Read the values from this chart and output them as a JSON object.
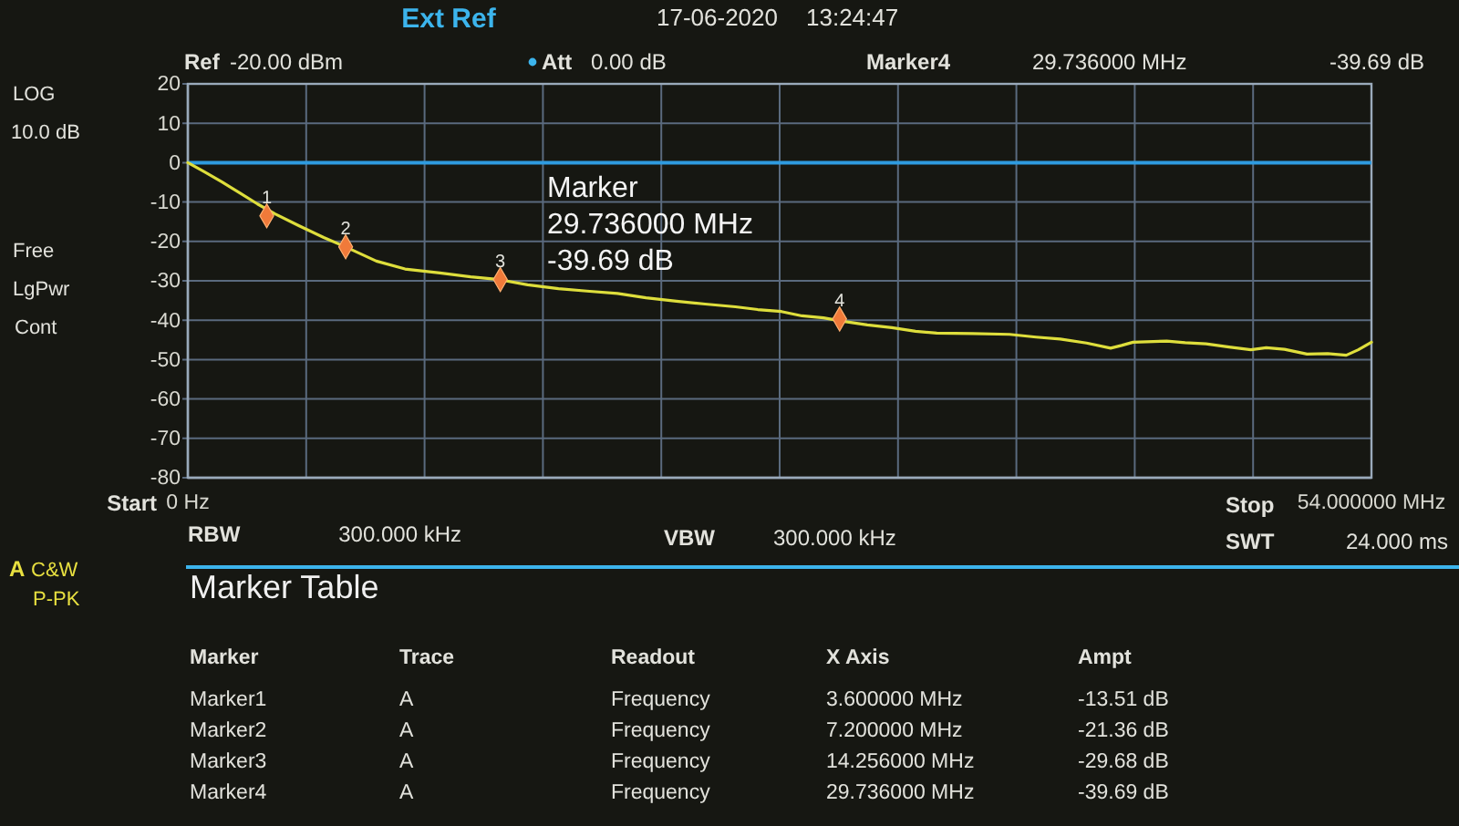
{
  "chart_data": {
    "type": "line",
    "series": [
      {
        "color": "#dede3c",
        "x": [
          0,
          0.75,
          1.56,
          2.37,
          3.18,
          3.98,
          5.06,
          6.2,
          7.2,
          8.6,
          9.91,
          11.5,
          12.9,
          14.21,
          15.5,
          16.91,
          18.2,
          19.6,
          20.9,
          22.29,
          23.6,
          24.98,
          26.0,
          27.08,
          28.02,
          29.0,
          29.82,
          31.0,
          32.12,
          33.2,
          34.17,
          35.8,
          37.49,
          38.7,
          39.8,
          41.0,
          42.1,
          42.6,
          43.12,
          44.66,
          45.5,
          46.45,
          47.5,
          48.5,
          49.2,
          50.03,
          51.06,
          52.0,
          52.85,
          53.4,
          54.0
        ],
        "values": [
          0,
          -2.3,
          -4.9,
          -7.7,
          -10.5,
          -13.0,
          -16.0,
          -19.0,
          -21.4,
          -25.0,
          -27.0,
          -28.0,
          -29.0,
          -29.7,
          -31.0,
          -32.0,
          -32.6,
          -33.2,
          -34.3,
          -35.2,
          -35.9,
          -36.6,
          -37.3,
          -37.8,
          -38.9,
          -39.4,
          -40.2,
          -41.2,
          -41.9,
          -42.8,
          -43.3,
          -43.4,
          -43.6,
          -44.3,
          -44.8,
          -45.8,
          -47.1,
          -46.4,
          -45.6,
          -45.3,
          -45.7,
          -46.0,
          -46.8,
          -47.5,
          -47.0,
          -47.4,
          -48.6,
          -48.5,
          -48.9,
          -47.5,
          -45.6
        ]
      },
      {
        "type": "scatter",
        "color": "#f07a3a",
        "marker": "diamond",
        "x": [
          3.6,
          7.2,
          14.256,
          29.736
        ],
        "values": [
          -13.51,
          -21.36,
          -29.68,
          -39.69
        ]
      }
    ],
    "xlim": [
      0,
      54
    ],
    "xticks": [
      {
        "value": 0,
        "label": "0 Hz"
      },
      {
        "value": 5.4,
        "label": null
      },
      {
        "value": 10.8,
        "label": null
      },
      {
        "value": 16.2,
        "label": null
      },
      {
        "value": 21.6,
        "label": null
      },
      {
        "value": 27,
        "label": null
      },
      {
        "value": 32.4,
        "label": null
      },
      {
        "value": 37.8,
        "label": null
      },
      {
        "value": 43.2,
        "label": null
      },
      {
        "value": 48.6,
        "label": null
      },
      {
        "value": 54,
        "label": "54.000000 MHz"
      }
    ],
    "ylim": [
      -80,
      20
    ],
    "yticks": [
      20,
      10,
      0,
      -10,
      -20,
      -30,
      -40,
      -50,
      -60,
      -70,
      -80
    ],
    "grid": true,
    "ref_lines": [
      {
        "axis": "y",
        "value": 0,
        "color": "#2e9be0"
      }
    ],
    "annotations": [
      "Ext Ref",
      "17-06-2020",
      "13:24:47",
      "Ref",
      "-20.00 dBm",
      "Att",
      "0.00 dB",
      "Marker4",
      "29.736000 MHz",
      "-39.69 dB",
      "LOG",
      "10.0 dB",
      "Free",
      "LgPwr",
      "Cont",
      "A",
      "C&W",
      "P-PK",
      "Marker",
      "29.736000 MHz",
      "-39.69 dB",
      "Start",
      "RBW",
      "300.000 kHz",
      "VBW",
      "300.000 kHz",
      "Stop",
      "SWT",
      "24.000 ms",
      "Marker Table",
      "Marker",
      "Trace",
      "Readout",
      "X Axis",
      "Ampt",
      "Marker1",
      "A",
      "Frequency",
      "3.600000 MHz",
      "-13.51 dB",
      "Marker2",
      "A",
      "Frequency",
      "7.200000 MHz",
      "-21.36 dB",
      "Marker3",
      "A",
      "Frequency",
      "14.256000 MHz",
      "-29.68 dB",
      "Marker4",
      "A",
      "Frequency",
      "29.736000 MHz",
      "-39.69 dB",
      {
        "text": "1",
        "x": 3.6,
        "y": -13.51
      },
      {
        "text": "2",
        "x": 7.2,
        "y": -21.36
      },
      {
        "text": "3",
        "x": 14.256,
        "y": -29.68
      },
      {
        "text": "4",
        "x": 29.736,
        "y": -39.69
      }
    ]
  }
}
